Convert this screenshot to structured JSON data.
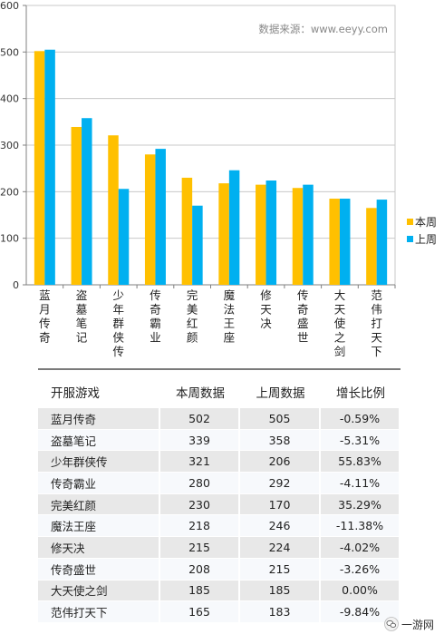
{
  "chart_data": {
    "type": "bar",
    "watermark": "数据来源：www.eeyy.com",
    "categories": [
      "蓝月传奇",
      "盗墓笔记",
      "少年群侠传",
      "传奇霸业",
      "完美红颜",
      "魔法王座",
      "修天决",
      "传奇盛世",
      "大天使之剑",
      "范伟打天下"
    ],
    "series": [
      {
        "name": "本周",
        "color": "#ffc000",
        "values": [
          502,
          339,
          321,
          280,
          230,
          218,
          215,
          208,
          185,
          165
        ]
      },
      {
        "name": "上周",
        "color": "#00b0f0",
        "values": [
          505,
          358,
          206,
          292,
          170,
          246,
          224,
          215,
          185,
          183
        ]
      }
    ],
    "y_ticks": [
      0,
      100,
      200,
      300,
      400,
      500,
      600
    ],
    "ylim": [
      0,
      600
    ],
    "grid": true,
    "legend_position": "right"
  },
  "table": {
    "headers": [
      "开服游戏",
      "本周数据",
      "上周数据",
      "增长比例"
    ],
    "rows": [
      [
        "蓝月传奇",
        "502",
        "505",
        "-0.59%"
      ],
      [
        "盗墓笔记",
        "339",
        "358",
        "-5.31%"
      ],
      [
        "少年群侠传",
        "321",
        "206",
        "55.83%"
      ],
      [
        "传奇霸业",
        "280",
        "292",
        "-4.11%"
      ],
      [
        "完美红颜",
        "230",
        "170",
        "35.29%"
      ],
      [
        "魔法王座",
        "218",
        "246",
        "-11.38%"
      ],
      [
        "修天决",
        "215",
        "224",
        "-4.02%"
      ],
      [
        "传奇盛世",
        "208",
        "215",
        "-3.26%"
      ],
      [
        "大天使之剑",
        "185",
        "185",
        "0.00%"
      ],
      [
        "范伟打天下",
        "165",
        "183",
        "-9.84%"
      ]
    ]
  },
  "watermark_logo": {
    "icon": "wechat-icon",
    "text": "一游网"
  }
}
